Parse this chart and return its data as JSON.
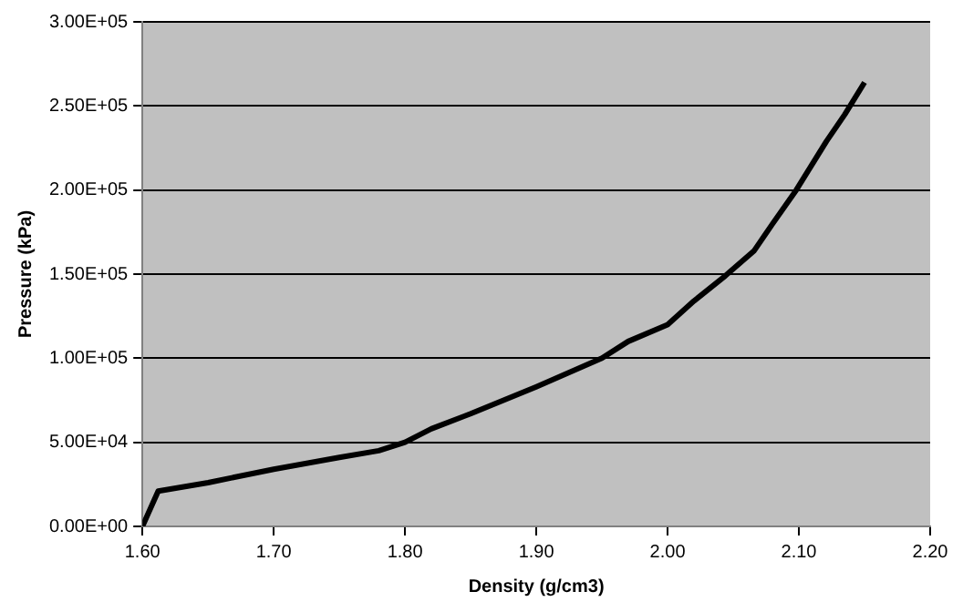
{
  "chart_data": {
    "type": "line",
    "xlabel": "Density (g/cm3)",
    "ylabel": "Pressure (kPa)",
    "x": [
      1.6,
      1.612,
      1.65,
      1.7,
      1.75,
      1.78,
      1.8,
      1.82,
      1.85,
      1.9,
      1.95,
      1.97,
      2.0,
      2.02,
      2.044,
      2.066,
      2.08,
      2.098,
      2.121,
      2.135,
      2.15
    ],
    "series": [
      {
        "color": "#000000",
        "values": [
          0,
          21000,
          26000,
          34000,
          41000,
          45000,
          50000,
          58000,
          67000,
          83000,
          100000,
          110000,
          120000,
          134000,
          149000,
          164000,
          180000,
          200000,
          229000,
          245000,
          264000
        ]
      }
    ],
    "xlim": [
      1.6,
      2.2
    ],
    "xticks": [
      {
        "value": 1.6,
        "label": "1.60"
      },
      {
        "value": 1.7,
        "label": "1.70"
      },
      {
        "value": 1.8,
        "label": "1.80"
      },
      {
        "value": 1.9,
        "label": "1.90"
      },
      {
        "value": 2.0,
        "label": "2.00"
      },
      {
        "value": 2.1,
        "label": "2.10"
      },
      {
        "value": 2.2,
        "label": "2.20"
      }
    ],
    "ylim": [
      0,
      300000
    ],
    "yticks": [
      {
        "value": 0,
        "label": "0.00E+00"
      },
      {
        "value": 50000,
        "label": "5.00E+04"
      },
      {
        "value": 100000,
        "label": "1.00E+05"
      },
      {
        "value": 150000,
        "label": "1.50E+05"
      },
      {
        "value": 200000,
        "label": "2.00E+05"
      },
      {
        "value": 250000,
        "label": "2.50E+05"
      },
      {
        "value": 300000,
        "label": "3.00E+05"
      }
    ],
    "grid": "y",
    "legend": false,
    "marker": "none",
    "line_style": "solid"
  }
}
